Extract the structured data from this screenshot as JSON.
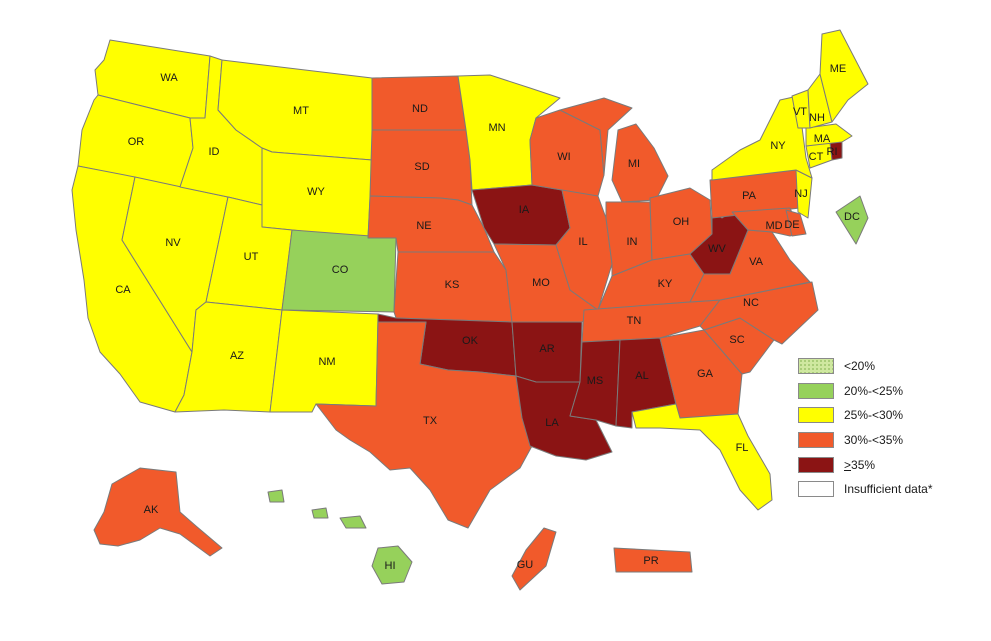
{
  "colors": {
    "lt20": "#cfe8a0",
    "c20_25": "#96d15b",
    "c25_30": "#ffff00",
    "c30_35": "#f15a2b",
    "ge35": "#8b1414",
    "insufficient": "#ffffff"
  },
  "legend": [
    {
      "key": "lt20",
      "ge_symbol": "",
      "label": "<20%"
    },
    {
      "key": "c20_25",
      "ge_symbol": "",
      "label": "20%-<25%"
    },
    {
      "key": "c25_30",
      "ge_symbol": "",
      "label": "25%-<30%"
    },
    {
      "key": "c30_35",
      "ge_symbol": "",
      "label": "30%-<35%"
    },
    {
      "key": "ge35",
      "ge_symbol": ">",
      "label": "35%"
    },
    {
      "key": "insufficient",
      "ge_symbol": "",
      "label": "Insufficient data*"
    }
  ],
  "states": {
    "WA": {
      "label": "WA",
      "category": "c25_30"
    },
    "OR": {
      "label": "OR",
      "category": "c25_30"
    },
    "CA": {
      "label": "CA",
      "category": "c25_30"
    },
    "NV": {
      "label": "NV",
      "category": "c25_30"
    },
    "ID": {
      "label": "ID",
      "category": "c25_30"
    },
    "MT": {
      "label": "MT",
      "category": "c25_30"
    },
    "WY": {
      "label": "WY",
      "category": "c25_30"
    },
    "UT": {
      "label": "UT",
      "category": "c25_30"
    },
    "AZ": {
      "label": "AZ",
      "category": "c25_30"
    },
    "CO": {
      "label": "CO",
      "category": "c20_25"
    },
    "NM": {
      "label": "NM",
      "category": "c25_30"
    },
    "ND": {
      "label": "ND",
      "category": "c30_35"
    },
    "SD": {
      "label": "SD",
      "category": "c30_35"
    },
    "NE": {
      "label": "NE",
      "category": "c30_35"
    },
    "KS": {
      "label": "KS",
      "category": "c30_35"
    },
    "OK": {
      "label": "OK",
      "category": "ge35"
    },
    "TX": {
      "label": "TX",
      "category": "c30_35"
    },
    "MN": {
      "label": "MN",
      "category": "c25_30"
    },
    "IA": {
      "label": "IA",
      "category": "ge35"
    },
    "MO": {
      "label": "MO",
      "category": "c30_35"
    },
    "AR": {
      "label": "AR",
      "category": "ge35"
    },
    "LA": {
      "label": "LA",
      "category": "ge35"
    },
    "WI": {
      "label": "WI",
      "category": "c30_35"
    },
    "IL": {
      "label": "IL",
      "category": "c30_35"
    },
    "MI": {
      "label": "MI",
      "category": "c30_35"
    },
    "IN": {
      "label": "IN",
      "category": "c30_35"
    },
    "OH": {
      "label": "OH",
      "category": "c30_35"
    },
    "KY": {
      "label": "KY",
      "category": "c30_35"
    },
    "TN": {
      "label": "TN",
      "category": "c30_35"
    },
    "MS": {
      "label": "MS",
      "category": "ge35"
    },
    "AL": {
      "label": "AL",
      "category": "ge35"
    },
    "GA": {
      "label": "GA",
      "category": "c30_35"
    },
    "FL": {
      "label": "FL",
      "category": "c25_30"
    },
    "SC": {
      "label": "SC",
      "category": "c30_35"
    },
    "NC": {
      "label": "NC",
      "category": "c30_35"
    },
    "VA": {
      "label": "VA",
      "category": "c30_35"
    },
    "WV": {
      "label": "WV",
      "category": "ge35"
    },
    "PA": {
      "label": "PA",
      "category": "c30_35"
    },
    "MD": {
      "label": "MD",
      "category": "c30_35"
    },
    "DE": {
      "label": "DE",
      "category": "c30_35"
    },
    "NJ": {
      "label": "NJ",
      "category": "c25_30"
    },
    "NY": {
      "label": "NY",
      "category": "c25_30"
    },
    "CT": {
      "label": "CT",
      "category": "c25_30"
    },
    "RI": {
      "label": "RI",
      "category": "ge35"
    },
    "MA": {
      "label": "MA",
      "category": "c25_30"
    },
    "VT": {
      "label": "VT",
      "category": "c25_30"
    },
    "NH": {
      "label": "NH",
      "category": "c25_30"
    },
    "ME": {
      "label": "ME",
      "category": "c25_30"
    },
    "DC": {
      "label": "DC",
      "category": "c20_25"
    },
    "AK": {
      "label": "AK",
      "category": "c30_35"
    },
    "HI": {
      "label": "HI",
      "category": "c20_25"
    },
    "GU": {
      "label": "GU",
      "category": "c30_35"
    },
    "PR": {
      "label": "PR",
      "category": "c30_35"
    }
  }
}
